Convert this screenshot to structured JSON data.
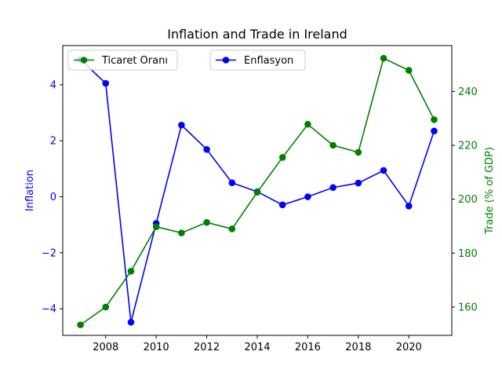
{
  "chart_data": {
    "type": "line",
    "title": "Inflation and Trade in Ireland",
    "x": [
      2007,
      2008,
      2009,
      2010,
      2011,
      2012,
      2013,
      2014,
      2015,
      2016,
      2017,
      2018,
      2019,
      2020,
      2021
    ],
    "x_ticks": [
      2008,
      2010,
      2012,
      2014,
      2016,
      2018,
      2020
    ],
    "xlim": [
      2006.3,
      2021.7
    ],
    "grid": false,
    "left_axis": {
      "label": "Inflation",
      "color": "#0000ff",
      "ylim": [
        -4.95,
        5.4
      ],
      "ticks": [
        -4,
        -2,
        0,
        2,
        4
      ]
    },
    "right_axis": {
      "label": "Trade (% of GDP)",
      "color": "#008000",
      "ylim": [
        149.5,
        257
      ],
      "ticks": [
        160,
        180,
        200,
        220,
        240
      ]
    },
    "series": [
      {
        "name": "Enflasyon",
        "axis": "left",
        "color": "#0000ff",
        "values": [
          4.9,
          4.05,
          -4.48,
          -0.95,
          2.56,
          1.69,
          0.5,
          0.18,
          -0.29,
          0.0,
          0.33,
          0.49,
          0.94,
          -0.33,
          2.35
        ],
        "legend_position": "top-center"
      },
      {
        "name": "Ticaret Oranı",
        "axis": "right",
        "color": "#008000",
        "values": [
          153.4,
          160.0,
          173.3,
          189.8,
          187.5,
          191.4,
          189.0,
          202.6,
          215.5,
          227.8,
          220.0,
          217.4,
          252.3,
          247.8,
          229.5
        ],
        "legend_position": "top-left"
      }
    ]
  }
}
